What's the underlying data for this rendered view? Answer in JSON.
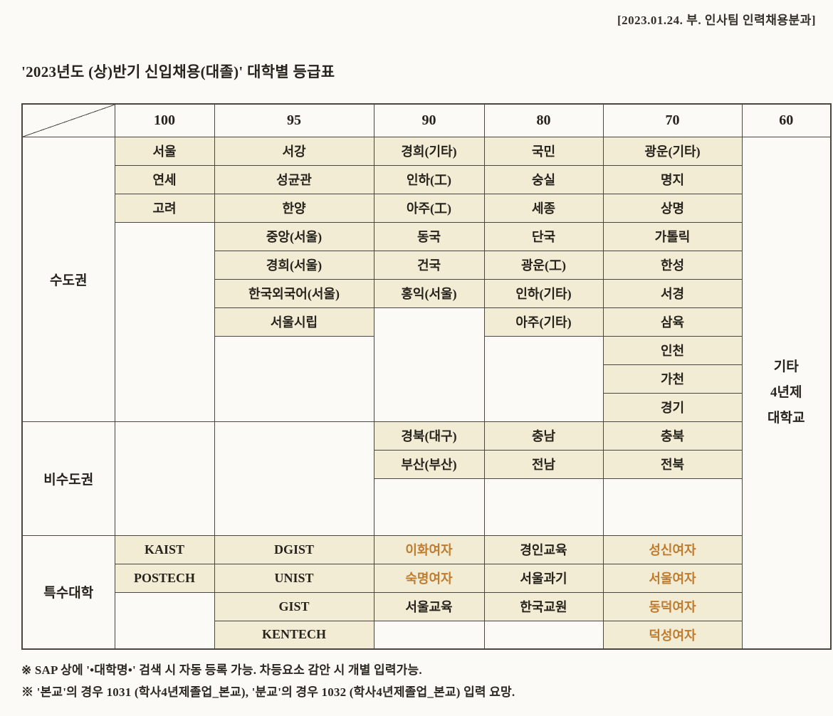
{
  "page": {
    "header_note": "[2023.01.24. 부. 인사팀 인력채용분과]",
    "title": "'2023년도 (상)반기 신입채용(대졸)' 대학별 등급표",
    "footnotes": [
      "※ SAP 상에 '•대학명•' 검색 시 자동 등록 가능. 차등요소 감안 시 개별 입력가능.",
      "※ '본교'의 경우 1031 (학사4년제졸업_본교), '분교'의 경우 1032 (학사4년제졸업_본교) 입력 요망."
    ]
  },
  "colors": {
    "filled_bg": "#f3ecd5",
    "highlight_text": "#bf7b2e",
    "line": "#4a473f",
    "text": "#26231d"
  },
  "table": {
    "columns": [
      "100",
      "95",
      "90",
      "80",
      "70",
      "60"
    ],
    "side_note_lines": [
      "기타",
      "4년제",
      "대학교"
    ],
    "sections": [
      {
        "label": "수도권",
        "rows": [
          [
            {
              "t": "서울"
            },
            {
              "t": "서강"
            },
            {
              "t": "경희(기타)"
            },
            {
              "t": "국민"
            },
            {
              "t": "광운(기타)"
            }
          ],
          [
            {
              "t": "연세"
            },
            {
              "t": "성균관"
            },
            {
              "t": "인하(工)"
            },
            {
              "t": "숭실"
            },
            {
              "t": "명지"
            }
          ],
          [
            {
              "t": "고려"
            },
            {
              "t": "한양"
            },
            {
              "t": "아주(工)"
            },
            {
              "t": "세종"
            },
            {
              "t": "상명"
            }
          ],
          [
            null,
            {
              "t": "중앙(서울)"
            },
            {
              "t": "동국"
            },
            {
              "t": "단국"
            },
            {
              "t": "가톨릭"
            }
          ],
          [
            null,
            {
              "t": "경희(서울)"
            },
            {
              "t": "건국"
            },
            {
              "t": "광운(工)"
            },
            {
              "t": "한성"
            }
          ],
          [
            null,
            {
              "t": "한국외국어(서울)"
            },
            {
              "t": "홍익(서울)"
            },
            {
              "t": "인하(기타)"
            },
            {
              "t": "서경"
            }
          ],
          [
            null,
            {
              "t": "서울시립"
            },
            null,
            {
              "t": "아주(기타)"
            },
            {
              "t": "삼육"
            }
          ],
          [
            null,
            null,
            null,
            null,
            {
              "t": "인천"
            }
          ],
          [
            null,
            null,
            null,
            null,
            {
              "t": "가천"
            }
          ],
          [
            null,
            null,
            null,
            null,
            {
              "t": "경기"
            }
          ]
        ]
      },
      {
        "label": "비수도권",
        "rows": [
          [
            null,
            null,
            {
              "t": "경북(대구)"
            },
            {
              "t": "충남"
            },
            {
              "t": "충북"
            }
          ],
          [
            null,
            null,
            {
              "t": "부산(부산)"
            },
            {
              "t": "전남"
            },
            {
              "t": "전북"
            }
          ],
          [
            null,
            null,
            null,
            null,
            null
          ],
          [
            null,
            null,
            null,
            null,
            null
          ]
        ]
      },
      {
        "label": "특수대학",
        "rows": [
          [
            {
              "t": "KAIST"
            },
            {
              "t": "DGIST"
            },
            {
              "t": "이화여자",
              "hl": true
            },
            {
              "t": "경인교육"
            },
            {
              "t": "성신여자",
              "hl": true
            }
          ],
          [
            {
              "t": "POSTECH"
            },
            {
              "t": "UNIST"
            },
            {
              "t": "숙명여자",
              "hl": true
            },
            {
              "t": "서울과기"
            },
            {
              "t": "서울여자",
              "hl": true
            }
          ],
          [
            null,
            {
              "t": "GIST"
            },
            {
              "t": "서울교육"
            },
            {
              "t": "한국교원"
            },
            {
              "t": "동덕여자",
              "hl": true
            }
          ],
          [
            null,
            {
              "t": "KENTECH"
            },
            null,
            null,
            {
              "t": "덕성여자",
              "hl": true
            }
          ]
        ]
      }
    ]
  }
}
